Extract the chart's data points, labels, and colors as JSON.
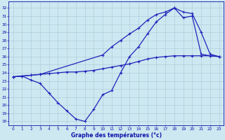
{
  "line_flat": {
    "x": [
      0,
      1,
      2,
      3,
      4,
      5,
      6,
      7,
      8,
      9,
      10,
      11,
      12,
      13,
      14,
      15,
      16,
      17,
      18,
      19,
      20,
      21,
      22,
      23
    ],
    "y": [
      23.5,
      23.6,
      23.7,
      23.8,
      23.9,
      24.0,
      24.1,
      24.1,
      24.2,
      24.3,
      24.5,
      24.7,
      24.9,
      25.1,
      25.4,
      25.7,
      25.9,
      26.0,
      26.1,
      26.1,
      26.1,
      26.1,
      26.1,
      26.0
    ],
    "color": "#2222bb",
    "linewidth": 0.9,
    "marker": "+"
  },
  "line_high": {
    "x": [
      0,
      1,
      2,
      3,
      10,
      11,
      12,
      13,
      14,
      15,
      16,
      17,
      18,
      19,
      20,
      21,
      22,
      23
    ],
    "y": [
      23.5,
      23.6,
      23.7,
      23.8,
      26.2,
      27.2,
      28.0,
      28.8,
      29.5,
      30.5,
      31.2,
      31.5,
      32.0,
      31.5,
      31.3,
      29.0,
      26.3,
      26.0
    ],
    "color": "#2222bb",
    "linewidth": 0.9,
    "marker": "+"
  },
  "line_low": {
    "x": [
      0,
      1,
      2,
      3,
      4,
      5,
      6,
      7,
      8,
      9,
      10,
      11,
      12,
      13,
      14,
      15,
      16,
      17,
      18,
      19,
      20,
      21,
      22,
      23
    ],
    "y": [
      23.5,
      23.6,
      23.1,
      22.7,
      21.5,
      20.3,
      19.3,
      18.3,
      18.0,
      19.5,
      21.3,
      21.8,
      24.0,
      26.0,
      27.2,
      28.8,
      30.3,
      31.2,
      32.0,
      30.8,
      31.0,
      26.3,
      26.1,
      26.0
    ],
    "color": "#2222bb",
    "linewidth": 0.9,
    "marker": "+"
  },
  "xlim": [
    -0.5,
    23.5
  ],
  "ylim": [
    17.5,
    32.8
  ],
  "yticks": [
    18,
    19,
    20,
    21,
    22,
    23,
    24,
    25,
    26,
    27,
    28,
    29,
    30,
    31,
    32
  ],
  "xticks": [
    0,
    1,
    2,
    3,
    4,
    5,
    6,
    7,
    8,
    9,
    10,
    11,
    12,
    13,
    14,
    15,
    16,
    17,
    18,
    19,
    20,
    21,
    22,
    23
  ],
  "xlabel": "Graphe des températures (°c)",
  "bg_color": "#cde8f0",
  "grid_color": "#a8c8d8",
  "axis_color": "#1111aa",
  "label_color": "#1111aa",
  "tick_color": "#1111aa"
}
